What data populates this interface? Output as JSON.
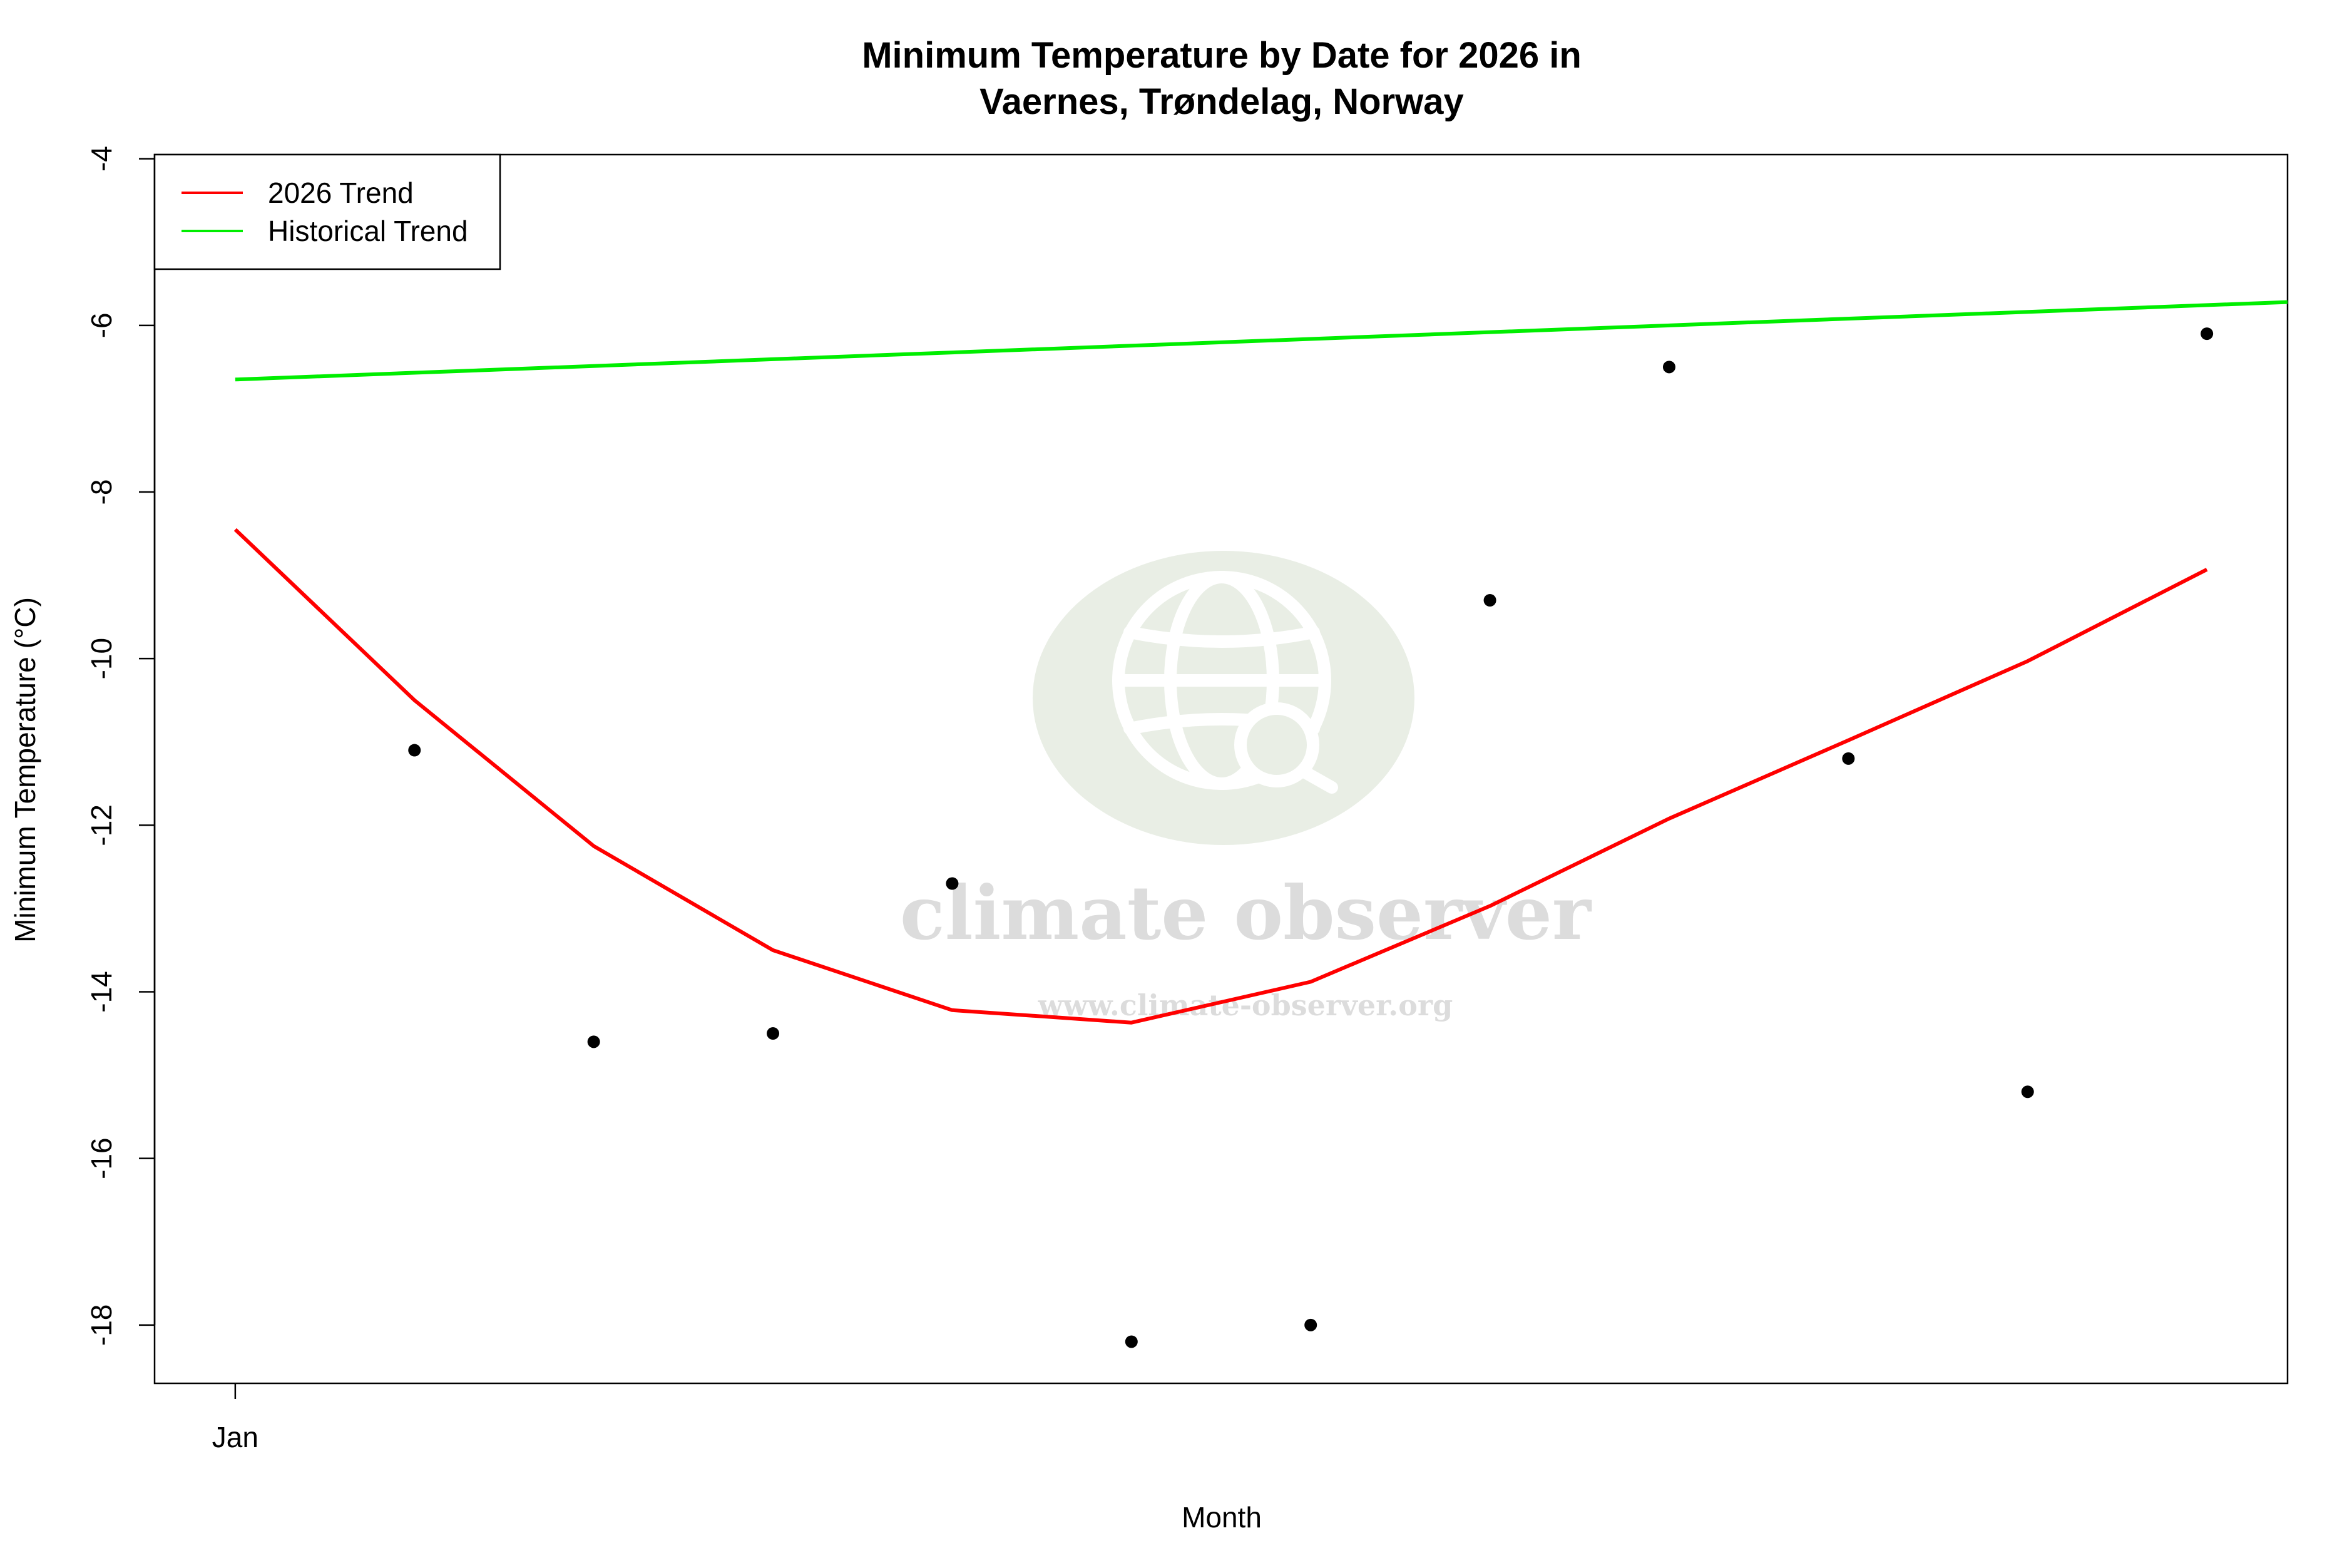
{
  "chart_data": {
    "type": "line",
    "title": "Minimum Temperature by Date for 2026 in",
    "subtitle": "Vaernes, Trøndelag, Norway",
    "xlabel": "Month",
    "ylabel": "Minimum Temperature (°C)",
    "x_ticks": [
      {
        "x": 1,
        "label": "Jan"
      }
    ],
    "y_ticks": [
      -4,
      -6,
      -8,
      -10,
      -12,
      -14,
      -16,
      -18
    ],
    "xlim": [
      0.55,
      12.45
    ],
    "ylim": [
      -18.7,
      -3.95
    ],
    "grid": false,
    "legend_position": "top-left",
    "points": {
      "x": [
        2,
        3,
        4,
        5,
        6,
        7,
        8,
        9,
        10,
        11,
        12
      ],
      "y": [
        -11.1,
        -14.6,
        -14.5,
        -12.7,
        -18.2,
        -18.0,
        -9.3,
        -6.5,
        -11.2,
        -15.2,
        -6.1
      ]
    },
    "series": [
      {
        "name": "2026 Trend",
        "color": "#ff0000",
        "x": [
          1,
          2,
          3,
          4,
          5,
          6,
          7,
          8,
          9,
          10,
          11,
          12
        ],
        "values": [
          -8.45,
          -10.5,
          -12.25,
          -13.5,
          -14.22,
          -14.37,
          -13.88,
          -12.97,
          -11.92,
          -10.98,
          -10.03,
          -8.93
        ]
      },
      {
        "name": "Historical Trend",
        "color": "#00ee00",
        "x": [
          1,
          12.45
        ],
        "values": [
          -6.65,
          -5.72
        ]
      }
    ]
  },
  "watermark": {
    "brand": "climate observer",
    "url": "www.climate-observer.org",
    "icon": "globe-search-icon"
  }
}
